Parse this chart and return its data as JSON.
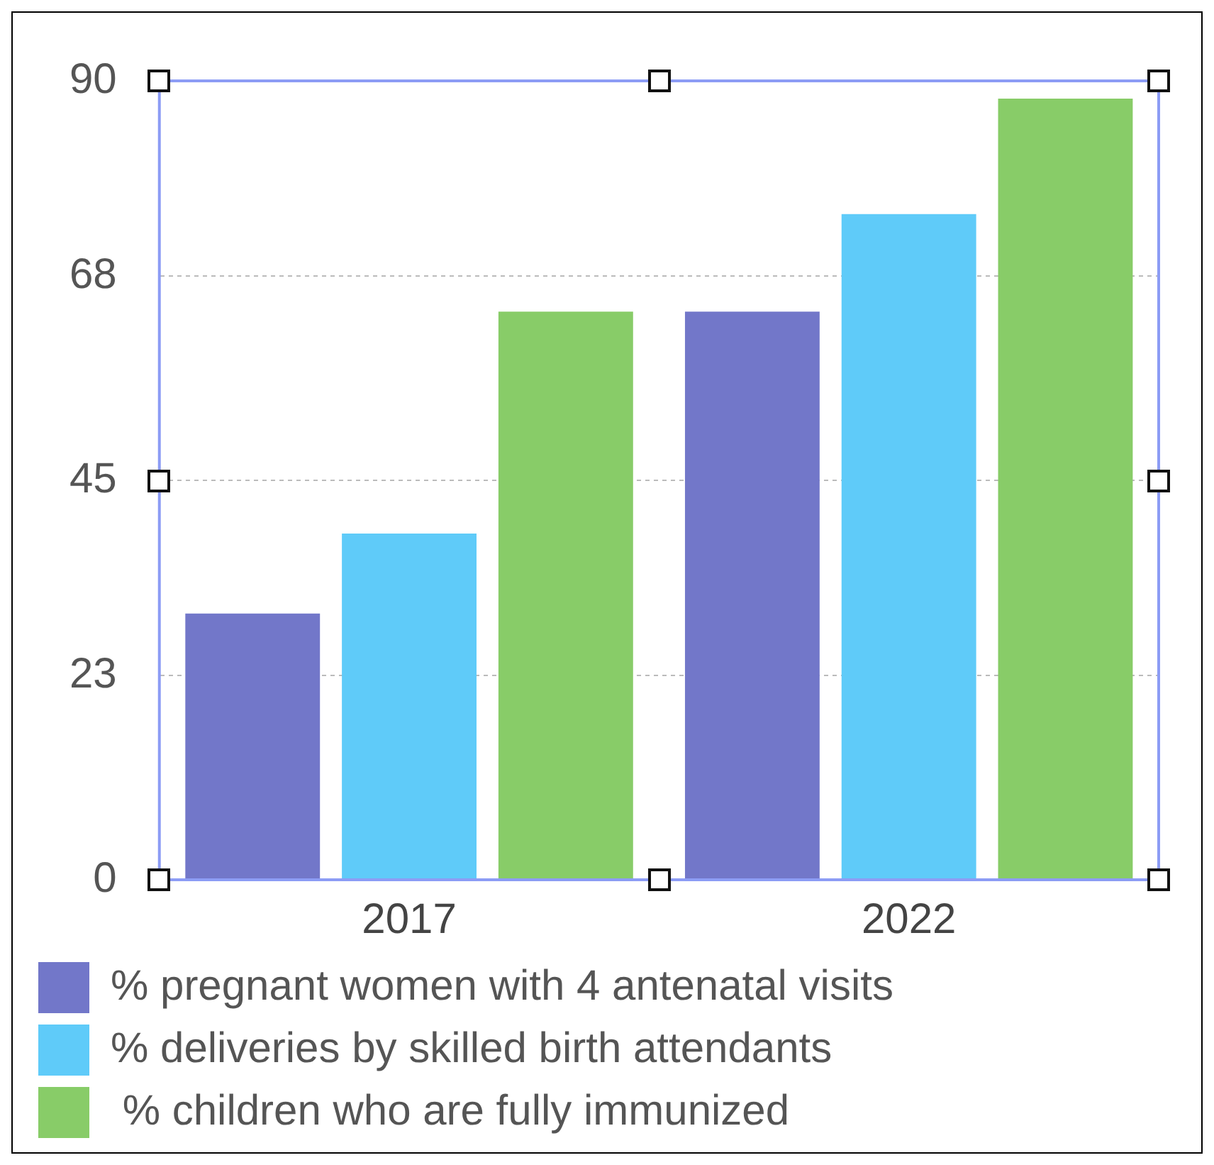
{
  "chart_data": {
    "type": "bar",
    "categories": [
      "2017",
      "2022"
    ],
    "series": [
      {
        "name": "% pregnant women with 4 antenatal visits",
        "color": "#7277c9",
        "values": [
          30,
          64
        ]
      },
      {
        "name": "% deliveries by skilled birth attendants",
        "color": "#5fcbf9",
        "values": [
          39,
          75
        ]
      },
      {
        "name": " % children who are fully immunized",
        "color": "#88cc68",
        "values": [
          64,
          88
        ]
      }
    ],
    "ylim": [
      0,
      90
    ],
    "yticks": [
      0,
      23,
      45,
      68,
      90
    ],
    "grid": "y",
    "legend": "bottom"
  }
}
